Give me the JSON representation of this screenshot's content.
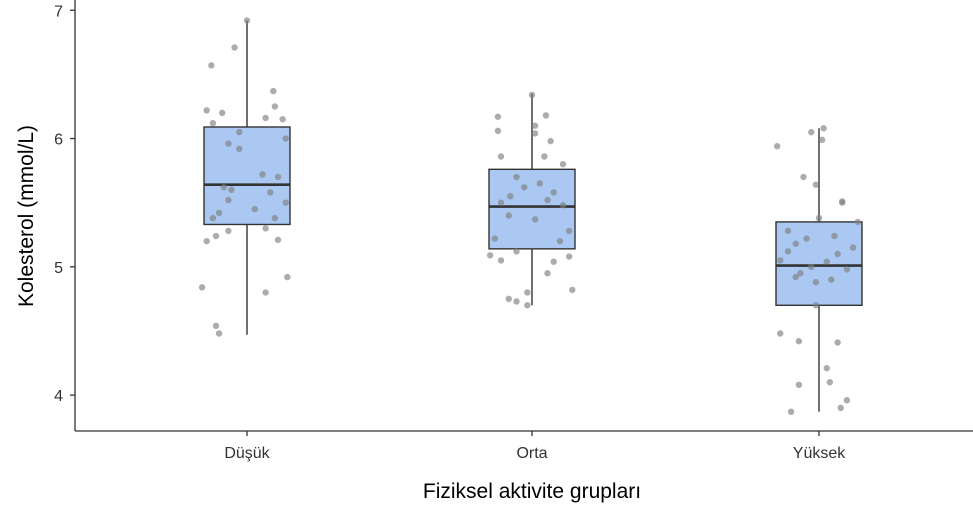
{
  "chart_data": {
    "type": "box",
    "title": "",
    "xlabel": "Fiziksel aktivite grupları",
    "ylabel": "Kolesterol (mmol/L)",
    "categories": [
      "Düşük",
      "Orta",
      "Yüksek"
    ],
    "ylim": [
      3.72,
      7.08
    ],
    "yticks": [
      4,
      5,
      6,
      7
    ],
    "grid": false,
    "box_fill": "#aac8f2",
    "box_stroke": "#333333",
    "point_color": "#7f7f7f",
    "boxes": [
      {
        "category": "Düşük",
        "whisker_low": 4.47,
        "q1": 5.33,
        "median": 5.64,
        "q3": 6.09,
        "whisker_high": 6.92
      },
      {
        "category": "Orta",
        "whisker_low": 4.7,
        "q1": 5.14,
        "median": 5.47,
        "q3": 5.76,
        "whisker_high": 6.35
      },
      {
        "category": "Yüksek",
        "whisker_low": 3.87,
        "q1": 4.7,
        "median": 5.01,
        "q3": 5.35,
        "whisker_high": 6.08
      }
    ],
    "points": [
      [
        {
          "dx": 0.0,
          "y": 6.92
        },
        {
          "dx": -0.08,
          "y": 6.71
        },
        {
          "dx": -0.23,
          "y": 6.57
        },
        {
          "dx": 0.17,
          "y": 6.37
        },
        {
          "dx": 0.18,
          "y": 6.25
        },
        {
          "dx": -0.26,
          "y": 6.22
        },
        {
          "dx": -0.16,
          "y": 6.2
        },
        {
          "dx": -0.22,
          "y": 6.12
        },
        {
          "dx": 0.12,
          "y": 6.16
        },
        {
          "dx": 0.23,
          "y": 6.15
        },
        {
          "dx": -0.05,
          "y": 6.05
        },
        {
          "dx": 0.25,
          "y": 6.0
        },
        {
          "dx": -0.12,
          "y": 5.96
        },
        {
          "dx": -0.05,
          "y": 5.92
        },
        {
          "dx": 0.1,
          "y": 5.72
        },
        {
          "dx": 0.2,
          "y": 5.7
        },
        {
          "dx": -0.15,
          "y": 5.62
        },
        {
          "dx": -0.1,
          "y": 5.6
        },
        {
          "dx": 0.15,
          "y": 5.58
        },
        {
          "dx": -0.12,
          "y": 5.52
        },
        {
          "dx": 0.25,
          "y": 5.5
        },
        {
          "dx": 0.05,
          "y": 5.45
        },
        {
          "dx": -0.18,
          "y": 5.42
        },
        {
          "dx": 0.18,
          "y": 5.38
        },
        {
          "dx": -0.22,
          "y": 5.38
        },
        {
          "dx": 0.12,
          "y": 5.3
        },
        {
          "dx": -0.12,
          "y": 5.28
        },
        {
          "dx": -0.2,
          "y": 5.24
        },
        {
          "dx": -0.26,
          "y": 5.2
        },
        {
          "dx": 0.2,
          "y": 5.21
        },
        {
          "dx": 0.26,
          "y": 4.92
        },
        {
          "dx": -0.29,
          "y": 4.84
        },
        {
          "dx": 0.12,
          "y": 4.8
        },
        {
          "dx": -0.2,
          "y": 4.54
        },
        {
          "dx": -0.18,
          "y": 4.48
        }
      ],
      [
        {
          "dx": 0.0,
          "y": 6.34
        },
        {
          "dx": 0.09,
          "y": 6.18
        },
        {
          "dx": -0.22,
          "y": 6.17
        },
        {
          "dx": 0.02,
          "y": 6.1
        },
        {
          "dx": 0.02,
          "y": 6.04
        },
        {
          "dx": -0.22,
          "y": 6.06
        },
        {
          "dx": 0.12,
          "y": 5.98
        },
        {
          "dx": -0.2,
          "y": 5.86
        },
        {
          "dx": 0.08,
          "y": 5.86
        },
        {
          "dx": 0.2,
          "y": 5.8
        },
        {
          "dx": -0.1,
          "y": 5.7
        },
        {
          "dx": 0.05,
          "y": 5.65
        },
        {
          "dx": -0.05,
          "y": 5.62
        },
        {
          "dx": 0.14,
          "y": 5.58
        },
        {
          "dx": -0.14,
          "y": 5.55
        },
        {
          "dx": 0.1,
          "y": 5.52
        },
        {
          "dx": -0.2,
          "y": 5.5
        },
        {
          "dx": 0.2,
          "y": 5.48
        },
        {
          "dx": -0.15,
          "y": 5.4
        },
        {
          "dx": 0.02,
          "y": 5.37
        },
        {
          "dx": 0.24,
          "y": 5.28
        },
        {
          "dx": -0.24,
          "y": 5.22
        },
        {
          "dx": 0.18,
          "y": 5.2
        },
        {
          "dx": -0.1,
          "y": 5.12
        },
        {
          "dx": -0.27,
          "y": 5.09
        },
        {
          "dx": 0.24,
          "y": 5.08
        },
        {
          "dx": -0.2,
          "y": 5.05
        },
        {
          "dx": 0.14,
          "y": 5.04
        },
        {
          "dx": 0.1,
          "y": 4.95
        },
        {
          "dx": 0.26,
          "y": 4.82
        },
        {
          "dx": -0.03,
          "y": 4.8
        },
        {
          "dx": -0.15,
          "y": 4.75
        },
        {
          "dx": -0.1,
          "y": 4.73
        },
        {
          "dx": -0.03,
          "y": 4.7
        }
      ],
      [
        {
          "dx": 0.03,
          "y": 6.08
        },
        {
          "dx": -0.05,
          "y": 6.05
        },
        {
          "dx": 0.02,
          "y": 5.99
        },
        {
          "dx": -0.27,
          "y": 5.94
        },
        {
          "dx": -0.1,
          "y": 5.7
        },
        {
          "dx": -0.02,
          "y": 5.64
        },
        {
          "dx": 0.15,
          "y": 5.51
        },
        {
          "dx": 0.15,
          "y": 5.5
        },
        {
          "dx": 0.0,
          "y": 5.38
        },
        {
          "dx": 0.25,
          "y": 5.35
        },
        {
          "dx": -0.2,
          "y": 5.28
        },
        {
          "dx": 0.1,
          "y": 5.24
        },
        {
          "dx": -0.08,
          "y": 5.22
        },
        {
          "dx": -0.15,
          "y": 5.18
        },
        {
          "dx": 0.22,
          "y": 5.15
        },
        {
          "dx": -0.2,
          "y": 5.12
        },
        {
          "dx": 0.12,
          "y": 5.1
        },
        {
          "dx": -0.25,
          "y": 5.05
        },
        {
          "dx": 0.05,
          "y": 5.04
        },
        {
          "dx": -0.05,
          "y": 5.0
        },
        {
          "dx": 0.18,
          "y": 4.98
        },
        {
          "dx": -0.12,
          "y": 4.95
        },
        {
          "dx": -0.15,
          "y": 4.92
        },
        {
          "dx": 0.08,
          "y": 4.9
        },
        {
          "dx": -0.02,
          "y": 4.88
        },
        {
          "dx": -0.02,
          "y": 4.7
        },
        {
          "dx": -0.25,
          "y": 4.48
        },
        {
          "dx": -0.13,
          "y": 4.42
        },
        {
          "dx": 0.12,
          "y": 4.41
        },
        {
          "dx": 0.05,
          "y": 4.21
        },
        {
          "dx": 0.07,
          "y": 4.1
        },
        {
          "dx": -0.13,
          "y": 4.08
        },
        {
          "dx": 0.18,
          "y": 3.96
        },
        {
          "dx": 0.14,
          "y": 3.9
        },
        {
          "dx": -0.18,
          "y": 3.87
        }
      ]
    ]
  }
}
